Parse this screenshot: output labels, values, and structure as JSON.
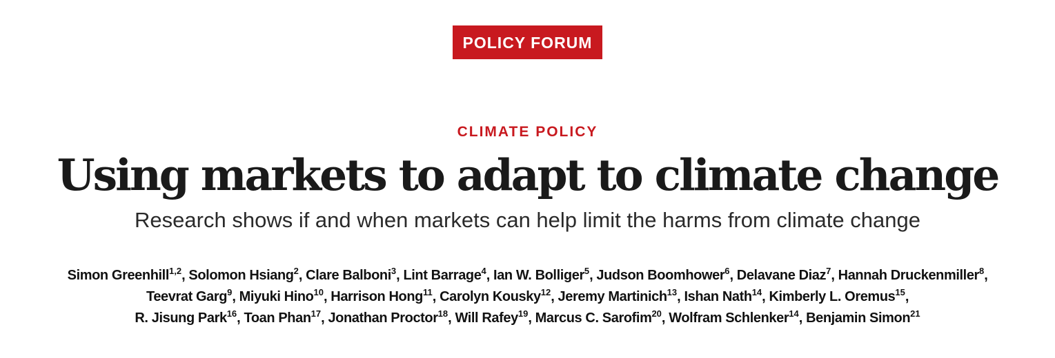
{
  "section_badge": "POLICY FORUM",
  "kicker": "CLIMATE POLICY",
  "title": "Using markets to adapt to climate change",
  "subtitle": "Research shows if and when markets can help limit the harms from climate change",
  "colors": {
    "accent": "#c8191f",
    "text": "#1a1a1a"
  },
  "author_lines": [
    [
      {
        "name": "Simon Greenhill",
        "aff": "1,2"
      },
      {
        "name": "Solomon Hsiang",
        "aff": "2"
      },
      {
        "name": "Clare Balboni",
        "aff": "3"
      },
      {
        "name": "Lint Barrage",
        "aff": "4"
      },
      {
        "name": "Ian W. Bolliger",
        "aff": "5"
      },
      {
        "name": "Judson Boomhower",
        "aff": "6"
      },
      {
        "name": "Delavane Diaz",
        "aff": "7"
      },
      {
        "name": "Hannah Druckenmiller",
        "aff": "8"
      }
    ],
    [
      {
        "name": "Teevrat Garg",
        "aff": "9"
      },
      {
        "name": "Miyuki Hino",
        "aff": "10"
      },
      {
        "name": "Harrison Hong",
        "aff": "11"
      },
      {
        "name": "Carolyn Kousky",
        "aff": "12"
      },
      {
        "name": "Jeremy Martinich",
        "aff": "13"
      },
      {
        "name": "Ishan Nath",
        "aff": "14"
      },
      {
        "name": "Kimberly L. Oremus",
        "aff": "15"
      }
    ],
    [
      {
        "name": "R. Jisung Park",
        "aff": "16"
      },
      {
        "name": "Toan Phan",
        "aff": "17"
      },
      {
        "name": "Jonathan Proctor",
        "aff": "18"
      },
      {
        "name": "Will Rafey",
        "aff": "19"
      },
      {
        "name": "Marcus C. Sarofim",
        "aff": "20"
      },
      {
        "name": "Wolfram Schlenker",
        "aff": "14"
      },
      {
        "name": "Benjamin Simon",
        "aff": "21"
      }
    ]
  ]
}
